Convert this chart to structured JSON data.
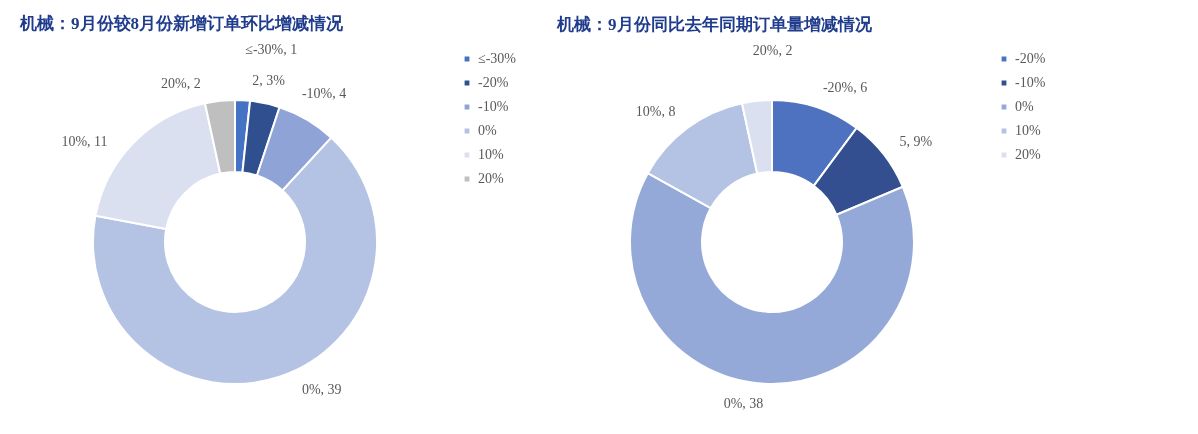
{
  "chart_data": [
    {
      "type": "donut",
      "title": "机械：9月份较8月份新增订单环比增减情况",
      "categories": [
        "≤-30%",
        "-20%",
        "-10%",
        "0%",
        "10%",
        "20%"
      ],
      "values": [
        1,
        2,
        4,
        39,
        11,
        2
      ],
      "colors": [
        "#4472c4",
        "#2f4f8f",
        "#8fa3d6",
        "#b4c3e4",
        "#dae0ef",
        "#bfbfbf"
      ],
      "value_labels": [
        "≤-30%, 1",
        "2, 3%",
        "-10%, 4",
        "0%, 39",
        "10%, 11",
        "20%, 2"
      ],
      "legend": "right"
    },
    {
      "type": "donut",
      "title": "机械：9月份同比去年同期订单量增减情况",
      "categories": [
        "-20%",
        "-10%",
        "0%",
        "10%",
        "20%"
      ],
      "values": [
        6,
        5,
        38,
        8,
        2
      ],
      "colors": [
        "#4f72c0",
        "#334f8f",
        "#95a9d9",
        "#b4c3e4",
        "#dae0ef"
      ],
      "value_labels": [
        "-20%, 6",
        "5, 9%",
        "0%, 38",
        "10%, 8",
        "20%, 2"
      ],
      "legend": "right"
    }
  ]
}
